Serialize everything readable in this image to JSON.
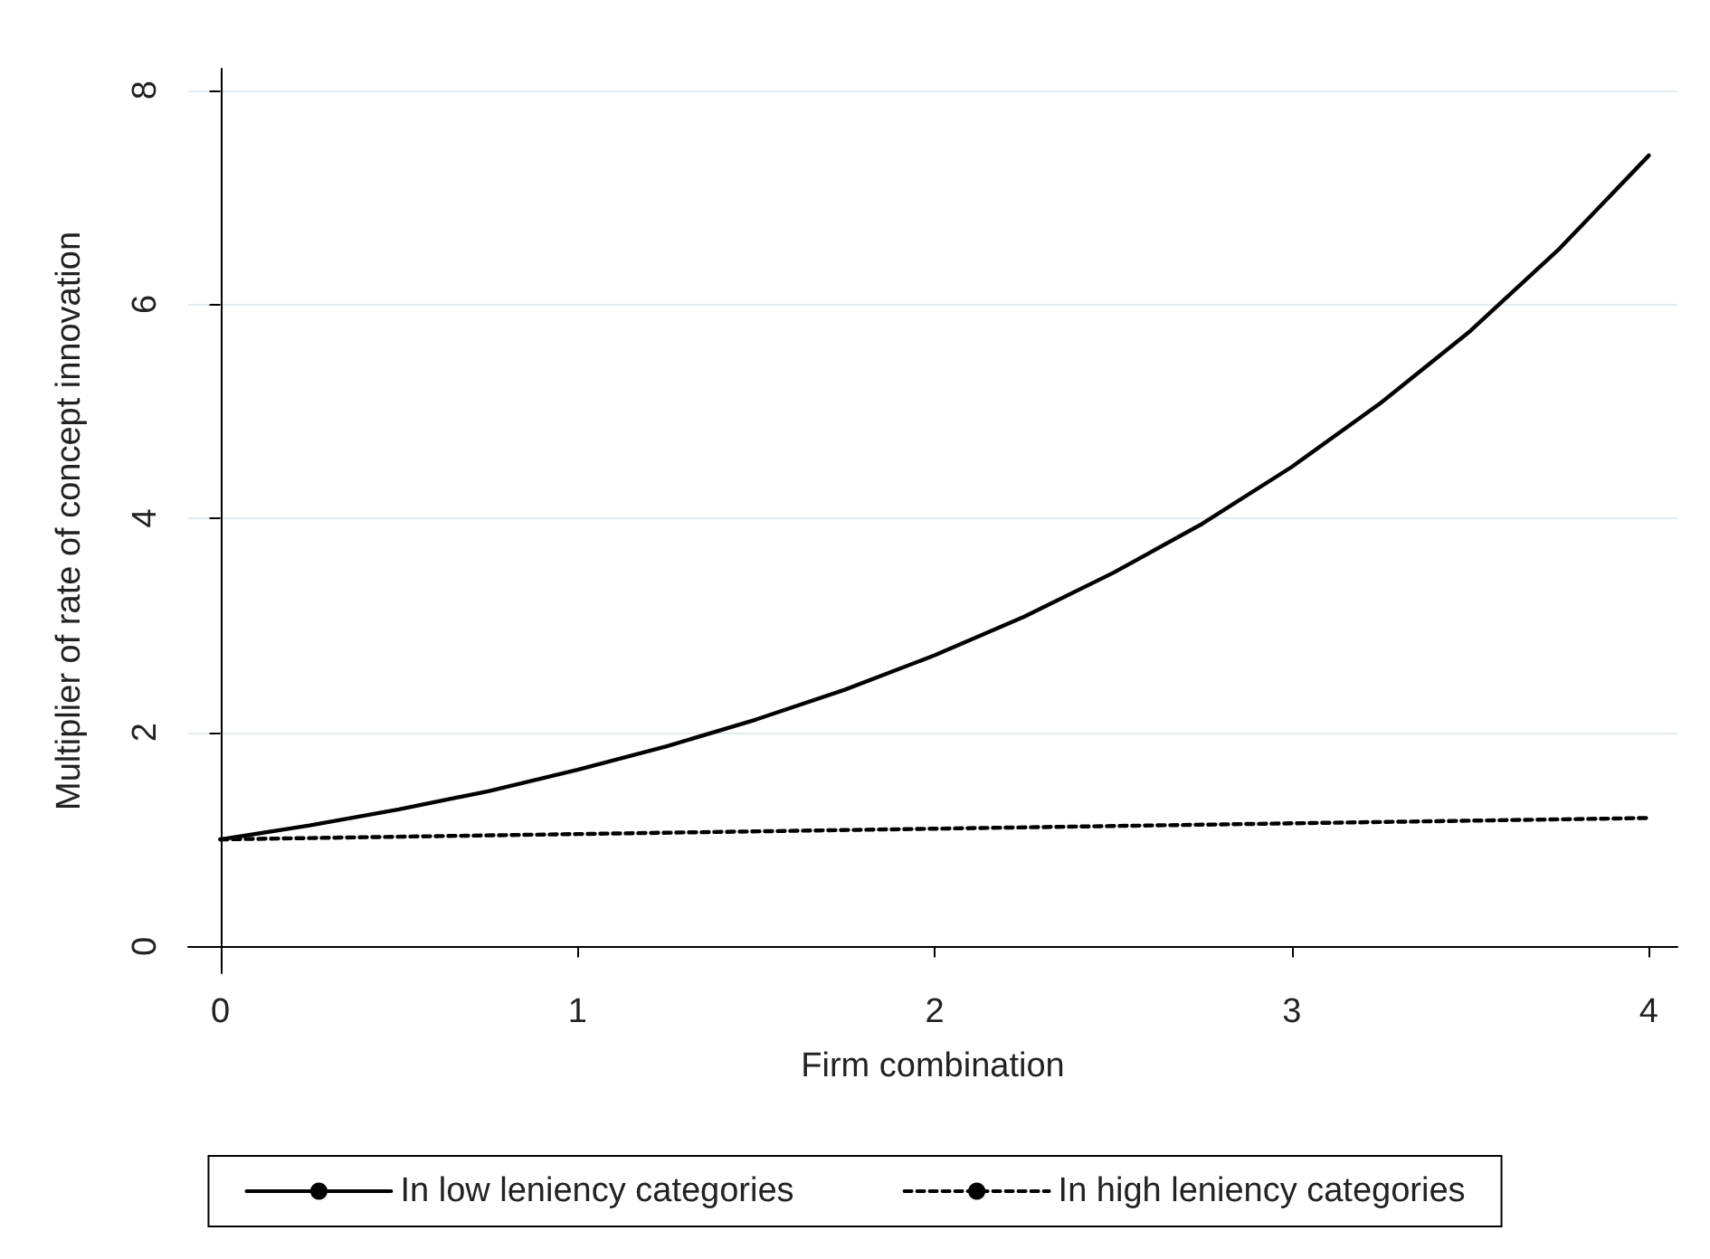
{
  "chart_data": {
    "type": "line",
    "xlabel": "Firm combination",
    "ylabel": "Multiplier of rate of concept innovation",
    "series": [
      {
        "name": "In low leniency categories",
        "color": "#000000",
        "line_style": "solid",
        "x": [
          0,
          0.25,
          0.5,
          0.75,
          1,
          1.25,
          1.5,
          1.75,
          2,
          2.25,
          2.5,
          2.75,
          3,
          3.25,
          3.5,
          3.75,
          4
        ],
        "values": [
          1,
          1.13,
          1.28,
          1.45,
          1.65,
          1.87,
          2.12,
          2.4,
          2.72,
          3.08,
          3.49,
          3.95,
          4.48,
          5.08,
          5.75,
          6.52,
          7.39
        ]
      },
      {
        "name": "In high leniency categories",
        "color": "#000000",
        "line_style": "dashed",
        "x": [
          0,
          1,
          2,
          3,
          4
        ],
        "values": [
          1,
          1.05,
          1.1,
          1.15,
          1.2
        ]
      }
    ],
    "xlim": [
      -0.09,
      4.08
    ],
    "xticks": [
      0,
      1,
      2,
      3,
      4
    ],
    "ylim": [
      -0.25,
      8.2
    ],
    "yticks": [
      0,
      2,
      4,
      6,
      8
    ],
    "grid": "y",
    "legend": "bottom",
    "marker": "none"
  }
}
